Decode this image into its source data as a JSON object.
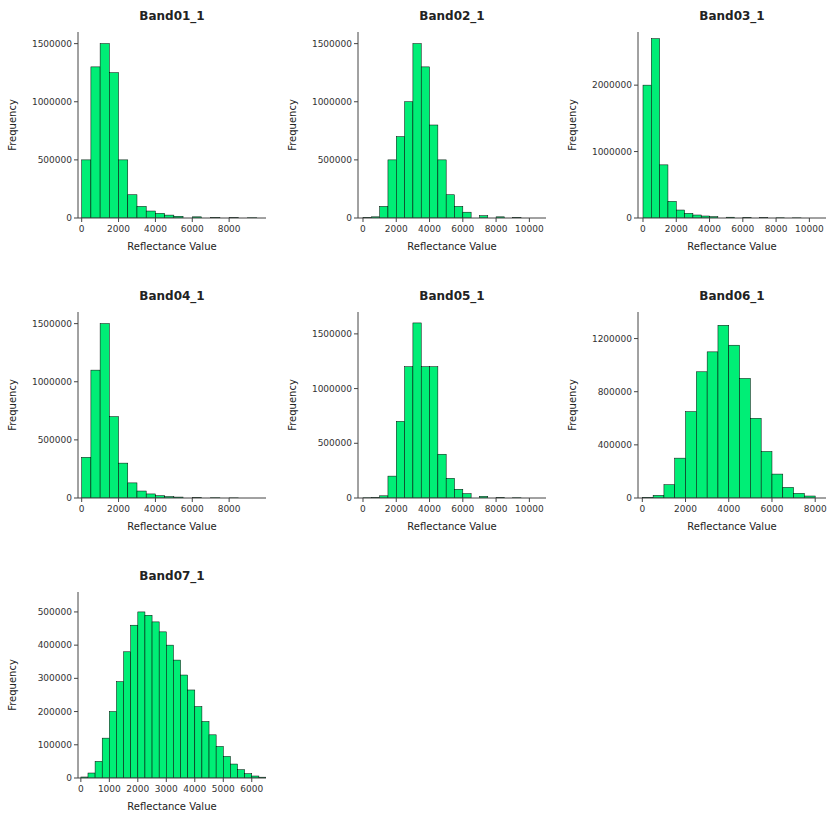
{
  "chart_data": [
    {
      "type": "histogram",
      "title": "Band01_1",
      "xlabel": "Reflectance Value",
      "ylabel": "Frequency",
      "color": "#00ee76",
      "grid": false,
      "xlim": [
        -200,
        10000
      ],
      "xticks": [
        0,
        2000,
        4000,
        6000,
        8000
      ],
      "ylim": [
        0,
        1600000
      ],
      "yticks": [
        0,
        500000,
        1000000,
        1500000
      ],
      "x": [
        0,
        500,
        1000,
        1500,
        2000,
        2500,
        3000,
        3500,
        4000,
        4500,
        5000,
        6000,
        7000,
        8000,
        9000
      ],
      "bin_width": 500,
      "values": [
        500000,
        1300000,
        1500000,
        1250000,
        500000,
        200000,
        100000,
        60000,
        40000,
        25000,
        15000,
        10000,
        5000,
        3000,
        2000
      ]
    },
    {
      "type": "histogram",
      "title": "Band02_1",
      "xlabel": "Reflectance Value",
      "ylabel": "Frequency",
      "color": "#00ee76",
      "grid": false,
      "xlim": [
        -300,
        11000
      ],
      "xticks": [
        0,
        2000,
        4000,
        6000,
        8000,
        10000
      ],
      "ylim": [
        0,
        1600000
      ],
      "yticks": [
        0,
        500000,
        1000000,
        1500000
      ],
      "x": [
        0,
        500,
        1000,
        1500,
        2000,
        2500,
        3000,
        3500,
        4000,
        4500,
        5000,
        5500,
        6000,
        7000,
        8000,
        9000
      ],
      "bin_width": 500,
      "values": [
        5000,
        10000,
        100000,
        500000,
        700000,
        1000000,
        1500000,
        1300000,
        800000,
        500000,
        200000,
        100000,
        50000,
        20000,
        10000,
        5000
      ]
    },
    {
      "type": "histogram",
      "title": "Band03_1",
      "xlabel": "Reflectance Value",
      "ylabel": "Frequency",
      "color": "#00ee76",
      "grid": false,
      "xlim": [
        -300,
        11000
      ],
      "xticks": [
        0,
        2000,
        4000,
        6000,
        8000,
        10000
      ],
      "ylim": [
        0,
        2800000
      ],
      "yticks": [
        0,
        1000000,
        2000000
      ],
      "x": [
        0,
        500,
        1000,
        1500,
        2000,
        2500,
        3000,
        3500,
        4000,
        5000,
        6000,
        7000,
        8000,
        9000
      ],
      "bin_width": 500,
      "values": [
        2000000,
        2700000,
        800000,
        250000,
        120000,
        70000,
        45000,
        30000,
        20000,
        12000,
        8000,
        5000,
        3000,
        2000
      ]
    },
    {
      "type": "histogram",
      "title": "Band04_1",
      "xlabel": "Reflectance Value",
      "ylabel": "Frequency",
      "color": "#00ee76",
      "grid": false,
      "xlim": [
        -200,
        10000
      ],
      "xticks": [
        0,
        2000,
        4000,
        6000,
        8000
      ],
      "ylim": [
        0,
        1600000
      ],
      "yticks": [
        0,
        500000,
        1000000,
        1500000
      ],
      "x": [
        0,
        500,
        1000,
        1500,
        2000,
        2500,
        3000,
        3500,
        4000,
        4500,
        5000,
        6000,
        7000,
        8000
      ],
      "bin_width": 500,
      "values": [
        350000,
        1100000,
        1500000,
        700000,
        300000,
        130000,
        60000,
        35000,
        20000,
        12000,
        8000,
        4000,
        2000,
        1000
      ]
    },
    {
      "type": "histogram",
      "title": "Band05_1",
      "xlabel": "Reflectance Value",
      "ylabel": "Frequency",
      "color": "#00ee76",
      "grid": false,
      "xlim": [
        -300,
        11000
      ],
      "xticks": [
        0,
        2000,
        4000,
        6000,
        8000,
        10000
      ],
      "ylim": [
        0,
        1700000
      ],
      "yticks": [
        0,
        500000,
        1000000,
        1500000
      ],
      "x": [
        0,
        500,
        1000,
        1500,
        2000,
        2500,
        3000,
        3500,
        4000,
        4500,
        5000,
        5500,
        6000,
        7000,
        8000,
        9000
      ],
      "bin_width": 500,
      "values": [
        2000,
        5000,
        20000,
        200000,
        700000,
        1200000,
        1600000,
        1200000,
        1200000,
        400000,
        180000,
        80000,
        40000,
        15000,
        5000,
        2000
      ]
    },
    {
      "type": "histogram",
      "title": "Band06_1",
      "xlabel": "Reflectance Value",
      "ylabel": "Frequency",
      "color": "#00ee76",
      "grid": false,
      "xlim": [
        -200,
        8500
      ],
      "xticks": [
        0,
        2000,
        4000,
        6000,
        8000
      ],
      "ylim": [
        0,
        1400000
      ],
      "yticks": [
        0,
        400000,
        800000,
        1200000
      ],
      "x": [
        0,
        500,
        1000,
        1500,
        2000,
        2500,
        3000,
        3500,
        4000,
        4500,
        5000,
        5500,
        6000,
        6500,
        7000,
        7500
      ],
      "bin_width": 500,
      "values": [
        5000,
        20000,
        100000,
        300000,
        650000,
        950000,
        1100000,
        1300000,
        1150000,
        900000,
        600000,
        350000,
        180000,
        80000,
        35000,
        15000
      ]
    },
    {
      "type": "histogram",
      "title": "Band07_1",
      "xlabel": "Reflectance Value",
      "ylabel": "Frequency",
      "color": "#00ee76",
      "grid": false,
      "xlim": [
        -100,
        6500
      ],
      "xticks": [
        0,
        1000,
        2000,
        3000,
        4000,
        5000,
        6000
      ],
      "ylim": [
        0,
        560000
      ],
      "yticks": [
        0,
        100000,
        200000,
        300000,
        400000,
        500000
      ],
      "x": [
        0,
        250,
        500,
        750,
        1000,
        1250,
        1500,
        1750,
        2000,
        2250,
        2500,
        2750,
        3000,
        3250,
        3500,
        3750,
        4000,
        4250,
        4500,
        4750,
        5000,
        5250,
        5500,
        5750,
        6000,
        6250
      ],
      "bin_width": 250,
      "values": [
        3000,
        15000,
        50000,
        120000,
        200000,
        290000,
        380000,
        460000,
        500000,
        490000,
        470000,
        440000,
        400000,
        355000,
        310000,
        265000,
        215000,
        170000,
        130000,
        95000,
        65000,
        42000,
        25000,
        13000,
        6000,
        2500
      ]
    }
  ]
}
